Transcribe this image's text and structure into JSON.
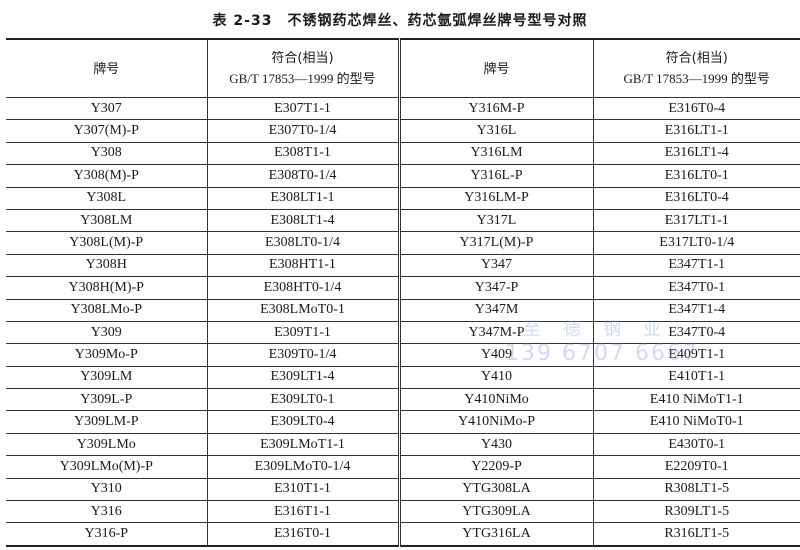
{
  "title": "表 2-33　不锈钢药芯焊丝、药芯氩弧焊丝牌号型号对照",
  "headers": {
    "brand": "牌号",
    "model_line1": "符合(相当)",
    "model_line2": "GB/T 17853—1999 的型号"
  },
  "rows": [
    [
      "Y307",
      "E307T1-1",
      "Y316M-P",
      "E316T0-4"
    ],
    [
      "Y307(M)-P",
      "E307T0-1/4",
      "Y316L",
      "E316LT1-1"
    ],
    [
      "Y308",
      "E308T1-1",
      "Y316LM",
      "E316LT1-4"
    ],
    [
      "Y308(M)-P",
      "E308T0-1/4",
      "Y316L-P",
      "E316LT0-1"
    ],
    [
      "Y308L",
      "E308LT1-1",
      "Y316LM-P",
      "E316LT0-4"
    ],
    [
      "Y308LM",
      "E308LT1-4",
      "Y317L",
      "E317LT1-1"
    ],
    [
      "Y308L(M)-P",
      "E308LT0-1/4",
      "Y317L(M)-P",
      "E317LT0-1/4"
    ],
    [
      "Y308H",
      "E308HT1-1",
      "Y347",
      "E347T1-1"
    ],
    [
      "Y308H(M)-P",
      "E308HT0-1/4",
      "Y347-P",
      "E347T0-1"
    ],
    [
      "Y308LMo-P",
      "E308LMoT0-1",
      "Y347M",
      "E347T1-4"
    ],
    [
      "Y309",
      "E309T1-1",
      "Y347M-P",
      "E347T0-4"
    ],
    [
      "Y309Mo-P",
      "E309T0-1/4",
      "Y409",
      "E409T1-1"
    ],
    [
      "Y309LM",
      "E309LT1-4",
      "Y410",
      "E410T1-1"
    ],
    [
      "Y309L-P",
      "E309LT0-1",
      "Y410NiMo",
      "E410 NiMoT1-1"
    ],
    [
      "Y309LM-P",
      "E309LT0-4",
      "Y410NiMo-P",
      "E410 NiMoT0-1"
    ],
    [
      "Y309LMo",
      "E309LMoT1-1",
      "Y430",
      "E430T0-1"
    ],
    [
      "Y309LMo(M)-P",
      "E309LMoT0-1/4",
      "Y2209-P",
      "E2209T0-1"
    ],
    [
      "Y310",
      "E310T1-1",
      "YTG308LA",
      "R308LT1-5"
    ],
    [
      "Y316",
      "E316T1-1",
      "YTG309LA",
      "R309LT1-5"
    ],
    [
      "Y316-P",
      "E316T0-1",
      "YTG316LA",
      "R316LT1-5"
    ]
  ],
  "watermark": {
    "name": "至德钢业",
    "phone": "139 6707 6667"
  }
}
